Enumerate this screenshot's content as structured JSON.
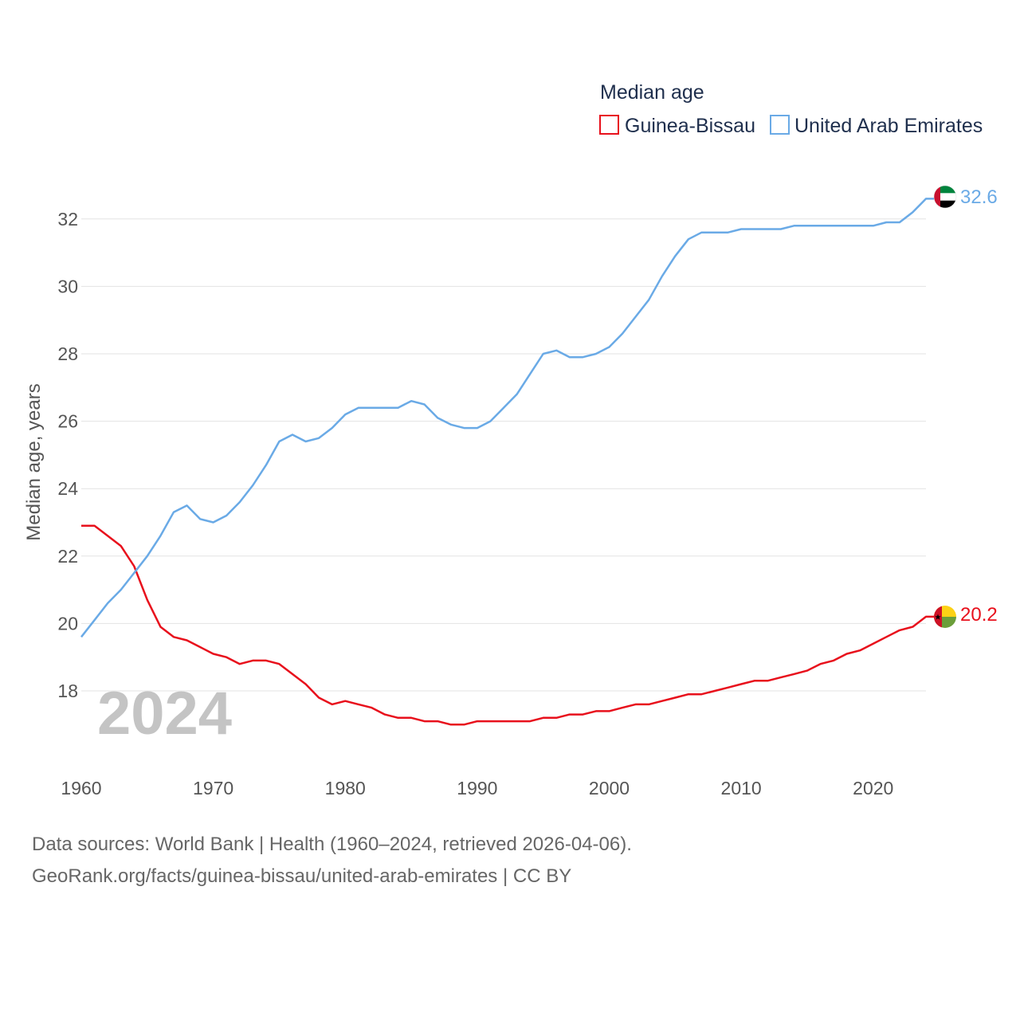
{
  "chart_data": {
    "type": "line",
    "legend_title": "Median age",
    "ylabel": "Median age, years",
    "year_label": "2024",
    "x_range": [
      1960,
      2025
    ],
    "ylim": [
      16,
      33
    ],
    "x_ticks": [
      1960,
      1970,
      1980,
      1990,
      2000,
      2010,
      2020
    ],
    "y_ticks": [
      18,
      20,
      22,
      24,
      26,
      28,
      30,
      32
    ],
    "x": [
      1960,
      1961,
      1962,
      1963,
      1964,
      1965,
      1966,
      1967,
      1968,
      1969,
      1970,
      1971,
      1972,
      1973,
      1974,
      1975,
      1976,
      1977,
      1978,
      1979,
      1980,
      1981,
      1982,
      1983,
      1984,
      1985,
      1986,
      1987,
      1988,
      1989,
      1990,
      1991,
      1992,
      1993,
      1994,
      1995,
      1996,
      1997,
      1998,
      1999,
      2000,
      2001,
      2002,
      2003,
      2004,
      2005,
      2006,
      2007,
      2008,
      2009,
      2010,
      2011,
      2012,
      2013,
      2014,
      2015,
      2016,
      2017,
      2018,
      2019,
      2020,
      2021,
      2022,
      2023,
      2024
    ],
    "series": [
      {
        "name": "Guinea-Bissau",
        "color": "#e8101c",
        "end_label": "20.2",
        "flag": "guinea-bissau-flag-icon",
        "values": [
          22.9,
          22.9,
          22.6,
          22.3,
          21.7,
          20.7,
          19.9,
          19.6,
          19.5,
          19.3,
          19.1,
          19.0,
          18.8,
          18.9,
          18.9,
          18.8,
          18.5,
          18.2,
          17.8,
          17.6,
          17.7,
          17.6,
          17.5,
          17.3,
          17.2,
          17.2,
          17.1,
          17.1,
          17.0,
          17.0,
          17.1,
          17.1,
          17.1,
          17.1,
          17.1,
          17.2,
          17.2,
          17.3,
          17.3,
          17.4,
          17.4,
          17.5,
          17.6,
          17.6,
          17.7,
          17.8,
          17.9,
          17.9,
          18.0,
          18.1,
          18.2,
          18.3,
          18.3,
          18.4,
          18.5,
          18.6,
          18.8,
          18.9,
          19.1,
          19.2,
          19.4,
          19.6,
          19.8,
          19.9,
          20.2
        ]
      },
      {
        "name": "United Arab Emirates",
        "color": "#6aaae6",
        "end_label": "32.6",
        "flag": "uae-flag-icon",
        "values": [
          19.6,
          20.1,
          20.6,
          21.0,
          21.5,
          22.0,
          22.6,
          23.3,
          23.5,
          23.1,
          23.0,
          23.2,
          23.6,
          24.1,
          24.7,
          25.4,
          25.6,
          25.4,
          25.5,
          25.8,
          26.2,
          26.4,
          26.4,
          26.4,
          26.4,
          26.6,
          26.5,
          26.1,
          25.9,
          25.8,
          25.8,
          26.0,
          26.4,
          26.8,
          27.4,
          28.0,
          28.1,
          27.9,
          27.9,
          28.0,
          28.2,
          28.6,
          29.1,
          29.6,
          30.3,
          30.9,
          31.4,
          31.6,
          31.6,
          31.6,
          31.7,
          31.7,
          31.7,
          31.7,
          31.8,
          31.8,
          31.8,
          31.8,
          31.8,
          31.8,
          31.8,
          31.9,
          31.9,
          32.2,
          32.6
        ]
      }
    ]
  },
  "footer": {
    "sources": "Data sources: World Bank | Health (1960–2024, retrieved 2026-04-06).",
    "attribution": "GeoRank.org/facts/guinea-bissau/united-arab-emirates | CC BY"
  }
}
